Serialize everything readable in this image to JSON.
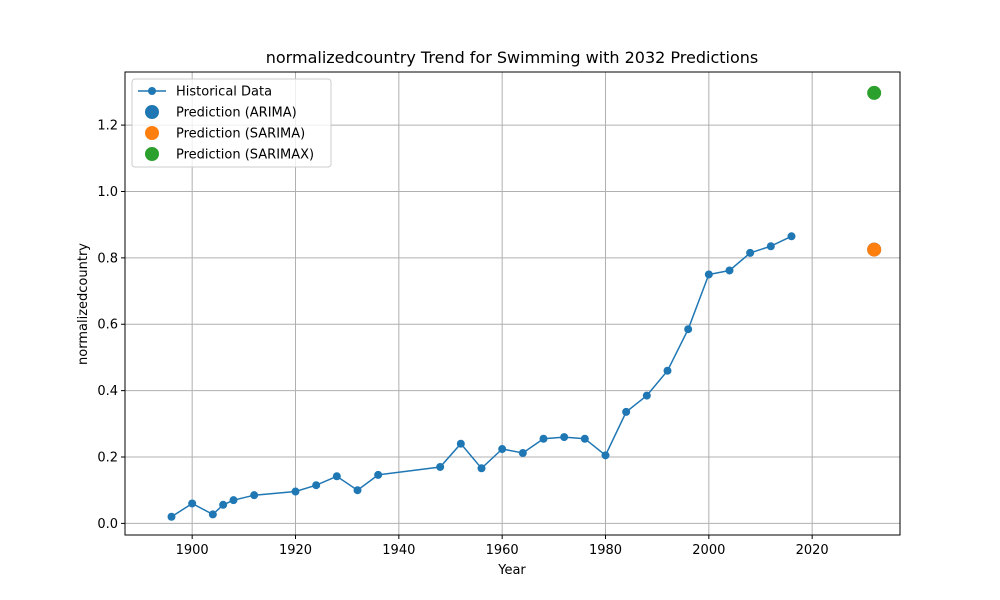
{
  "chart_data": {
    "type": "line",
    "title": "normalizedcountry Trend for Swimming with 2032 Predictions",
    "xlabel": "Year",
    "ylabel": "normalizedcountry",
    "xlim": [
      1887,
      2037
    ],
    "ylim": [
      -0.035,
      1.36
    ],
    "xticks": [
      1900,
      1920,
      1940,
      1960,
      1980,
      2000,
      2020
    ],
    "yticks": [
      0.0,
      0.2,
      0.4,
      0.6,
      0.8,
      1.0,
      1.2
    ],
    "grid": true,
    "legend_position": "upper-left",
    "series": [
      {
        "name": "Historical Data",
        "color": "#1f77b4",
        "style": "line-with-markers",
        "x": [
          1896,
          1900,
          1904,
          1906,
          1908,
          1912,
          1920,
          1924,
          1928,
          1932,
          1936,
          1948,
          1952,
          1956,
          1960,
          1964,
          1968,
          1972,
          1976,
          1980,
          1984,
          1988,
          1992,
          1996,
          2000,
          2004,
          2008,
          2012,
          2016
        ],
        "y": [
          0.02,
          0.06,
          0.027,
          0.056,
          0.07,
          0.085,
          0.096,
          0.115,
          0.142,
          0.1,
          0.146,
          0.17,
          0.24,
          0.166,
          0.224,
          0.212,
          0.255,
          0.26,
          0.255,
          0.205,
          0.336,
          0.385,
          0.46,
          0.585,
          0.75,
          0.762,
          0.815,
          0.835,
          0.865
        ]
      },
      {
        "name": "Prediction (ARIMA)",
        "color": "#1f77b4",
        "style": "point",
        "x": [
          2032
        ],
        "y": [
          0.825
        ]
      },
      {
        "name": "Prediction (SARIMA)",
        "color": "#ff7f0e",
        "style": "point",
        "x": [
          2032
        ],
        "y": [
          0.825
        ]
      },
      {
        "name": "Prediction (SARIMAX)",
        "color": "#2ca02c",
        "style": "point",
        "x": [
          2032
        ],
        "y": [
          1.297
        ]
      }
    ]
  }
}
